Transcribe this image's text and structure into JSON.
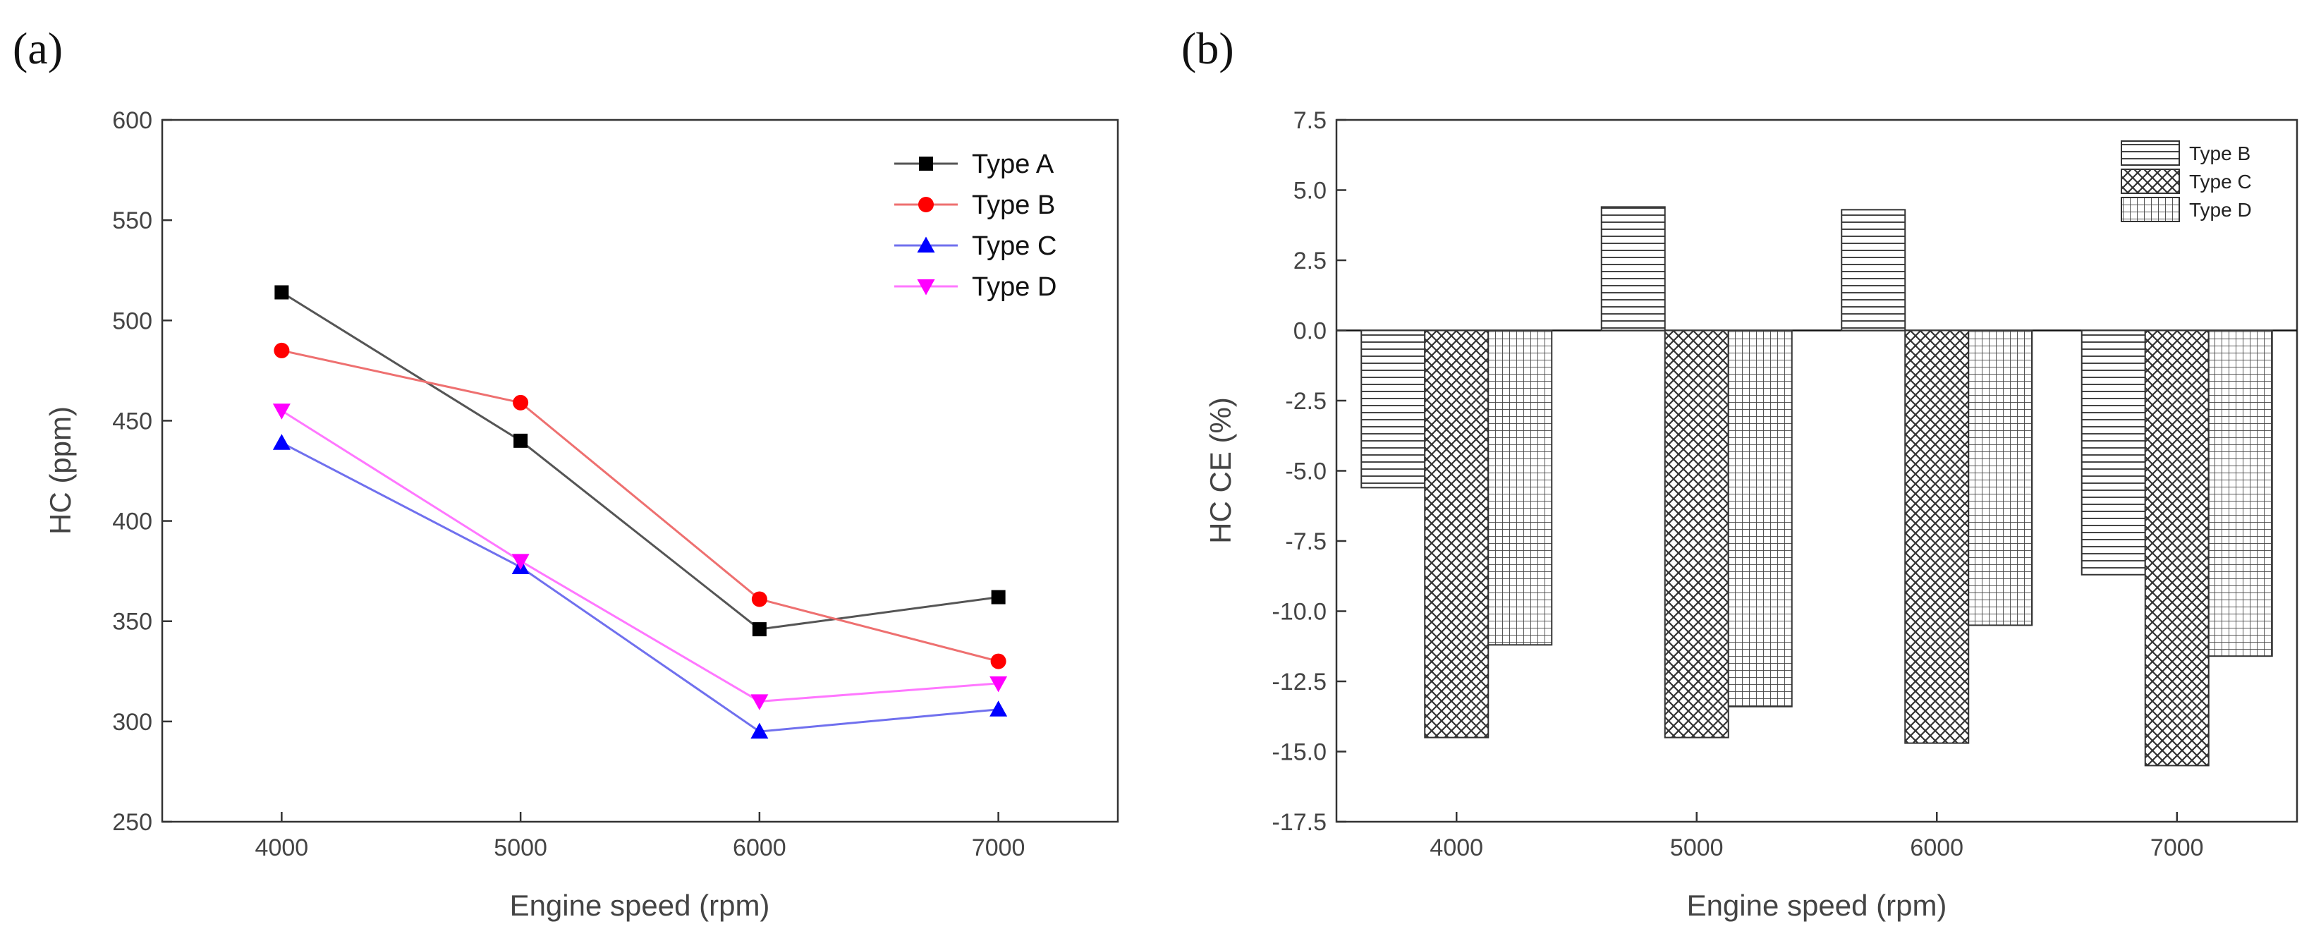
{
  "chart_data": [
    {
      "panel_label": "(a)",
      "type": "line",
      "title": "",
      "xlabel": "Engine speed (rpm)",
      "ylabel": "HC (ppm)",
      "x": [
        4000,
        5000,
        6000,
        7000
      ],
      "xlim": [
        3500,
        7500
      ],
      "ylim": [
        250,
        600
      ],
      "yticks": [
        250,
        300,
        350,
        400,
        450,
        500,
        550,
        600
      ],
      "grid": false,
      "legend_position": "top-right",
      "series": [
        {
          "name": "Type A",
          "color": "#000000",
          "line_color": "#555555",
          "marker": "square",
          "values": [
            514,
            440,
            346,
            362
          ]
        },
        {
          "name": "Type B",
          "color": "#ff0000",
          "line_color": "#ee7070",
          "marker": "circle",
          "values": [
            485,
            459,
            361,
            330
          ]
        },
        {
          "name": "Type C",
          "color": "#0000ff",
          "line_color": "#7070ee",
          "marker": "triangle-up",
          "values": [
            439,
            377,
            295,
            306
          ]
        },
        {
          "name": "Type D",
          "color": "#ff00ff",
          "line_color": "#ff77ff",
          "marker": "triangle-down",
          "values": [
            455,
            380,
            310,
            319
          ]
        }
      ]
    },
    {
      "panel_label": "(b)",
      "type": "bar",
      "title": "",
      "xlabel": "Engine speed (rpm)",
      "ylabel": "HC CE (%)",
      "categories": [
        "4000",
        "5000",
        "6000",
        "7000"
      ],
      "ylim": [
        -17.5,
        7.5
      ],
      "yticks": [
        7.5,
        5.0,
        2.5,
        0.0,
        -2.5,
        -5.0,
        -7.5,
        -10.0,
        -12.5,
        -15.0,
        -17.5
      ],
      "grid": false,
      "legend_position": "top-right",
      "series": [
        {
          "name": "Type B",
          "pattern": "horizontal-lines",
          "values": [
            -5.6,
            4.4,
            4.3,
            -8.7
          ]
        },
        {
          "name": "Type C",
          "pattern": "crosshatch",
          "values": [
            -14.5,
            -14.5,
            -14.7,
            -15.5
          ]
        },
        {
          "name": "Type D",
          "pattern": "grid",
          "values": [
            -11.2,
            -13.4,
            -10.5,
            -11.6
          ]
        }
      ]
    }
  ]
}
